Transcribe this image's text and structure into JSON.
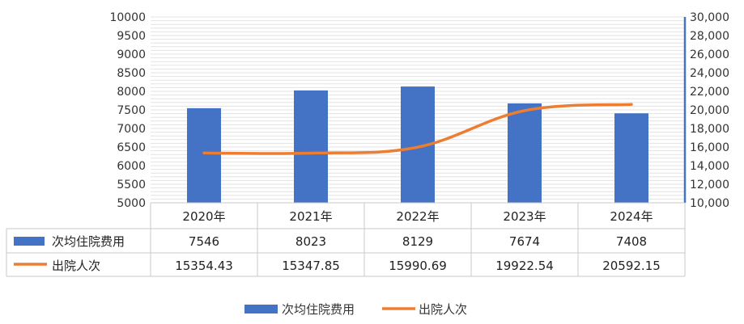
{
  "chart_data": {
    "type": "bar",
    "categories": [
      "2020年",
      "2021年",
      "2022年",
      "2023年",
      "2024年"
    ],
    "series": [
      {
        "name": "次均住院费用",
        "type": "bar",
        "axis": "left",
        "color": "#4472C4",
        "values": [
          7546,
          8023,
          8129,
          7674,
          7408
        ],
        "labels": [
          "7546",
          "8023",
          "8129",
          "7674",
          "7408"
        ]
      },
      {
        "name": "出院人次",
        "type": "line",
        "axis": "right",
        "color": "#ED7D31",
        "values": [
          15354.43,
          15347.85,
          15990.69,
          19922.54,
          20592.15
        ],
        "labels": [
          "15354.43",
          "15347.85",
          "15990.69",
          "19922.54",
          "20592.15"
        ]
      }
    ],
    "y_left": {
      "min": 5000,
      "max": 10000,
      "step": 500,
      "tick_labels": [
        "5000",
        "5500",
        "6000",
        "6500",
        "7000",
        "7500",
        "8000",
        "8500",
        "9000",
        "9500",
        "10000"
      ]
    },
    "y_right": {
      "min": 10000,
      "max": 30000,
      "step": 2000,
      "tick_labels": [
        "10,000",
        "12,000",
        "14,000",
        "16,000",
        "18,000",
        "20,000",
        "22,000",
        "24,000",
        "26,000",
        "28,000",
        "30,000"
      ]
    },
    "grid": true,
    "data_table": true,
    "legend": "bottom"
  }
}
